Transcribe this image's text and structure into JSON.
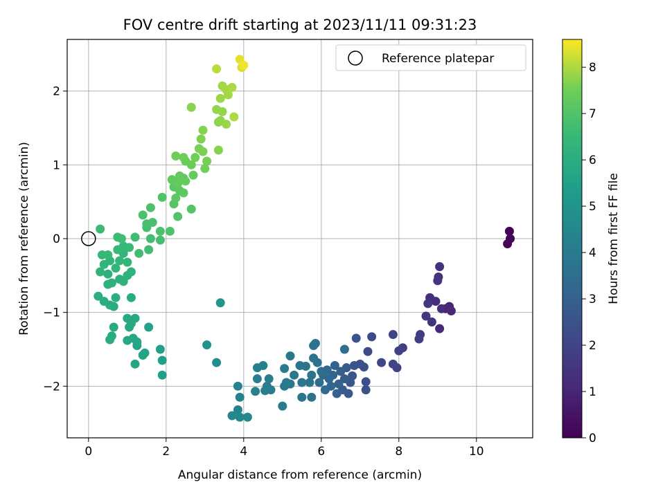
{
  "chart_data": {
    "type": "scatter",
    "title": "FOV centre drift starting at 2023/11/11 09:31:23",
    "xlabel": "Angular distance from reference (arcmin)",
    "ylabel": "Rotation from reference (arcmin)",
    "xlim": [
      -0.55,
      11.45
    ],
    "ylim": [
      -2.7,
      2.7
    ],
    "xticks": [
      0,
      2,
      4,
      6,
      8,
      10
    ],
    "yticks": [
      -2,
      -1,
      0,
      1,
      2
    ],
    "grid": true,
    "legend": {
      "position": "top-right",
      "entries": [
        "Reference platepar"
      ]
    },
    "reference_point": {
      "x": 0,
      "y": 0
    },
    "colorbar": {
      "label": "Hours from first FF file",
      "min": 0,
      "max": 8.6,
      "ticks": [
        0,
        1,
        2,
        3,
        4,
        5,
        6,
        7,
        8
      ],
      "colormap": "viridis"
    },
    "points": [
      [
        10.85,
        0.1,
        0.05
      ],
      [
        10.87,
        0.0,
        0.08
      ],
      [
        10.8,
        -0.07,
        0.1
      ],
      [
        9.3,
        -0.92,
        1.0
      ],
      [
        9.2,
        -0.95,
        1.05
      ],
      [
        9.35,
        -0.98,
        1.1
      ],
      [
        9.05,
        -1.22,
        1.15
      ],
      [
        9.1,
        -0.95,
        1.2
      ],
      [
        8.95,
        -0.85,
        1.25
      ],
      [
        8.8,
        -0.8,
        1.3
      ],
      [
        9.05,
        -0.38,
        1.35
      ],
      [
        9.02,
        -0.52,
        1.4
      ],
      [
        9.0,
        -0.57,
        1.45
      ],
      [
        8.85,
        -1.13,
        1.5
      ],
      [
        8.75,
        -0.88,
        1.55
      ],
      [
        8.7,
        -1.05,
        1.6
      ],
      [
        8.55,
        -1.3,
        1.7
      ],
      [
        8.52,
        -1.36,
        1.75
      ],
      [
        8.1,
        -1.48,
        1.8
      ],
      [
        8.0,
        -1.52,
        1.9
      ],
      [
        7.95,
        -1.75,
        1.95
      ],
      [
        7.85,
        -1.3,
        2.0
      ],
      [
        7.85,
        -1.7,
        2.05
      ],
      [
        7.55,
        -1.68,
        2.1
      ],
      [
        7.3,
        -1.33,
        2.2
      ],
      [
        7.2,
        -1.53,
        2.25
      ],
      [
        7.1,
        -1.74,
        2.3
      ],
      [
        7.15,
        -1.94,
        2.35
      ],
      [
        7.15,
        -2.05,
        2.4
      ],
      [
        7.0,
        -1.7,
        2.45
      ],
      [
        6.9,
        -1.35,
        2.5
      ],
      [
        6.85,
        -1.72,
        2.55
      ],
      [
        6.8,
        -1.86,
        2.6
      ],
      [
        6.75,
        -1.95,
        2.65
      ],
      [
        6.7,
        -2.1,
        2.7
      ],
      [
        6.65,
        -1.75,
        2.75
      ],
      [
        6.6,
        -1.9,
        2.8
      ],
      [
        6.55,
        -2.05,
        2.85
      ],
      [
        6.5,
        -1.8,
        2.9
      ],
      [
        6.45,
        -1.97,
        2.95
      ],
      [
        6.4,
        -2.1,
        3.0
      ],
      [
        6.35,
        -1.72,
        3.05
      ],
      [
        6.3,
        -1.85,
        3.1
      ],
      [
        6.25,
        -2.0,
        3.15
      ],
      [
        6.2,
        -1.9,
        3.2
      ],
      [
        6.15,
        -1.78,
        3.25
      ],
      [
        6.1,
        -2.05,
        3.3
      ],
      [
        6.05,
        -1.85,
        3.35
      ],
      [
        6.0,
        -1.8,
        3.4
      ],
      [
        5.95,
        -1.95,
        3.45
      ],
      [
        6.6,
        -1.5,
        3.5
      ],
      [
        5.9,
        -1.68,
        3.55
      ],
      [
        5.85,
        -1.42,
        3.6
      ],
      [
        5.8,
        -1.45,
        3.62
      ],
      [
        5.8,
        -1.62,
        3.65
      ],
      [
        5.75,
        -1.85,
        3.68
      ],
      [
        5.7,
        -1.95,
        3.7
      ],
      [
        5.75,
        -2.15,
        3.72
      ],
      [
        5.6,
        -1.73,
        3.75
      ],
      [
        5.5,
        -1.95,
        3.78
      ],
      [
        5.5,
        -2.15,
        3.8
      ],
      [
        5.45,
        -1.72,
        3.82
      ],
      [
        5.3,
        -1.85,
        3.85
      ],
      [
        5.2,
        -1.59,
        3.88
      ],
      [
        5.2,
        -1.97,
        3.9
      ],
      [
        5.1,
        -1.95,
        3.92
      ],
      [
        5.05,
        -2.0,
        3.95
      ],
      [
        5.05,
        -1.76,
        3.97
      ],
      [
        5.0,
        -2.27,
        4.0
      ],
      [
        4.7,
        -2.05,
        4.05
      ],
      [
        4.65,
        -1.9,
        4.1
      ],
      [
        4.6,
        -2.0,
        4.12
      ],
      [
        4.55,
        -2.06,
        4.15
      ],
      [
        4.5,
        -1.72,
        4.18
      ],
      [
        4.35,
        -1.75,
        4.2
      ],
      [
        4.35,
        -1.9,
        4.22
      ],
      [
        4.3,
        -2.07,
        4.25
      ],
      [
        3.85,
        -2.0,
        4.3
      ],
      [
        3.9,
        -2.15,
        4.35
      ],
      [
        3.85,
        -2.32,
        4.4
      ],
      [
        3.9,
        -2.42,
        4.45
      ],
      [
        4.1,
        -2.42,
        4.5
      ],
      [
        3.7,
        -2.4,
        4.55
      ],
      [
        3.3,
        -1.68,
        4.7
      ],
      [
        3.05,
        -1.44,
        4.9
      ],
      [
        3.4,
        -0.87,
        5.1
      ],
      [
        1.9,
        -1.85,
        5.4
      ],
      [
        1.9,
        -1.65,
        5.45
      ],
      [
        1.85,
        -1.5,
        5.5
      ],
      [
        1.55,
        -1.2,
        5.55
      ],
      [
        1.4,
        -1.58,
        5.6
      ],
      [
        1.45,
        -1.55,
        5.62
      ],
      [
        1.25,
        -1.45,
        5.65
      ],
      [
        1.2,
        -1.7,
        5.68
      ],
      [
        1.25,
        -1.4,
        5.7
      ],
      [
        1.15,
        -1.35,
        5.72
      ],
      [
        1.0,
        -1.38,
        5.75
      ],
      [
        1.2,
        -1.08,
        5.78
      ],
      [
        1.1,
        -1.15,
        5.8
      ],
      [
        1.05,
        -1.2,
        5.82
      ],
      [
        1.0,
        -1.08,
        5.85
      ],
      [
        0.65,
        -1.2,
        5.88
      ],
      [
        0.6,
        -1.32,
        5.9
      ],
      [
        0.55,
        -1.37,
        5.92
      ],
      [
        1.1,
        -0.8,
        5.95
      ],
      [
        0.65,
        -0.92,
        5.97
      ],
      [
        0.55,
        -0.9,
        6.0
      ],
      [
        0.4,
        -0.85,
        6.02
      ],
      [
        0.25,
        -0.78,
        6.05
      ],
      [
        0.7,
        -0.8,
        6.08
      ],
      [
        0.5,
        -0.62,
        6.1
      ],
      [
        0.5,
        -0.48,
        6.12
      ],
      [
        0.6,
        -0.6,
        6.15
      ],
      [
        0.8,
        -0.55,
        6.18
      ],
      [
        0.9,
        -0.58,
        6.2
      ],
      [
        1.0,
        -0.5,
        6.22
      ],
      [
        1.1,
        -0.45,
        6.25
      ],
      [
        0.3,
        -0.45,
        6.28
      ],
      [
        0.4,
        -0.35,
        6.3
      ],
      [
        0.55,
        -0.3,
        6.32
      ],
      [
        0.7,
        -0.4,
        6.35
      ],
      [
        0.8,
        -0.3,
        6.38
      ],
      [
        0.9,
        -0.2,
        6.4
      ],
      [
        1.0,
        -0.32,
        6.42
      ],
      [
        0.35,
        -0.22,
        6.45
      ],
      [
        0.5,
        -0.22,
        6.48
      ],
      [
        0.75,
        -0.15,
        6.5
      ],
      [
        0.9,
        -0.1,
        6.52
      ],
      [
        1.05,
        -0.12,
        6.55
      ],
      [
        0.3,
        0.13,
        6.58
      ],
      [
        0.75,
        0.02,
        6.6
      ],
      [
        0.85,
        0.0,
        6.62
      ],
      [
        1.2,
        0.02,
        6.65
      ],
      [
        1.3,
        -0.2,
        6.68
      ],
      [
        1.55,
        -0.15,
        6.7
      ],
      [
        1.6,
        0.0,
        6.72
      ],
      [
        1.85,
        -0.02,
        6.75
      ],
      [
        1.5,
        0.15,
        6.78
      ],
      [
        1.5,
        0.2,
        6.8
      ],
      [
        1.65,
        0.22,
        6.82
      ],
      [
        1.4,
        0.32,
        6.85
      ],
      [
        1.6,
        0.42,
        6.88
      ],
      [
        1.85,
        0.1,
        6.9
      ],
      [
        2.1,
        0.1,
        6.92
      ],
      [
        1.9,
        0.56,
        6.95
      ],
      [
        2.3,
        0.3,
        7.0
      ],
      [
        2.65,
        0.4,
        7.05
      ],
      [
        2.2,
        0.47,
        7.1
      ],
      [
        2.2,
        0.7,
        7.15
      ],
      [
        2.25,
        0.55,
        7.2
      ],
      [
        2.35,
        0.65,
        7.22
      ],
      [
        2.45,
        0.62,
        7.25
      ],
      [
        2.45,
        0.82,
        7.28
      ],
      [
        2.15,
        0.8,
        7.3
      ],
      [
        2.3,
        0.75,
        7.32
      ],
      [
        2.35,
        0.85,
        7.35
      ],
      [
        2.5,
        0.78,
        7.38
      ],
      [
        2.7,
        0.86,
        7.4
      ],
      [
        2.65,
        1.0,
        7.42
      ],
      [
        2.5,
        1.05,
        7.45
      ],
      [
        2.45,
        1.1,
        7.48
      ],
      [
        2.25,
        1.12,
        7.5
      ],
      [
        2.75,
        1.1,
        7.52
      ],
      [
        3.0,
        0.95,
        7.55
      ],
      [
        3.05,
        1.05,
        7.58
      ],
      [
        2.85,
        1.22,
        7.6
      ],
      [
        2.95,
        1.18,
        7.62
      ],
      [
        2.9,
        1.35,
        7.65
      ],
      [
        2.95,
        1.47,
        7.68
      ],
      [
        3.35,
        1.2,
        7.7
      ],
      [
        2.65,
        1.78,
        7.72
      ],
      [
        3.35,
        1.58,
        7.75
      ],
      [
        3.4,
        1.6,
        7.78
      ],
      [
        3.45,
        1.72,
        7.8
      ],
      [
        3.3,
        1.75,
        7.82
      ],
      [
        3.55,
        1.55,
        7.85
      ],
      [
        3.4,
        1.9,
        7.88
      ],
      [
        3.45,
        2.07,
        7.9
      ],
      [
        3.6,
        1.95,
        7.92
      ],
      [
        3.55,
        2.02,
        7.95
      ],
      [
        3.7,
        2.05,
        7.98
      ],
      [
        3.75,
        1.65,
        8.0
      ],
      [
        3.3,
        2.3,
        8.1
      ],
      [
        3.95,
        2.32,
        8.3
      ],
      [
        3.9,
        2.43,
        8.4
      ],
      [
        4.0,
        2.35,
        8.5
      ]
    ]
  }
}
